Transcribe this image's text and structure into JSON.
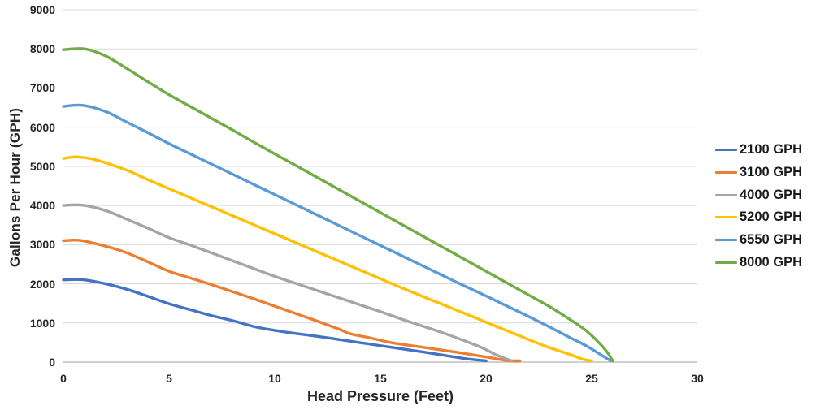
{
  "chart_data": {
    "type": "line",
    "title": "",
    "xlabel": "Head Pressure (Feet)",
    "ylabel": "Gallons Per Hour (GPH)",
    "xlim": [
      0,
      30
    ],
    "ylim": [
      0,
      9000
    ],
    "x_ticks": [
      0,
      5,
      10,
      15,
      20,
      25,
      30
    ],
    "y_ticks": [
      0,
      1000,
      2000,
      3000,
      4000,
      5000,
      6000,
      7000,
      8000,
      9000
    ],
    "grid": "horizontal-only",
    "gridline_color": "#d9d9d9",
    "axis_line_color": "#bfbfbf",
    "legend_position": "right",
    "series": [
      {
        "name": "2100 GPH",
        "color": "#4472C4",
        "points": [
          [
            0,
            2100
          ],
          [
            0.9,
            2105
          ],
          [
            2,
            2000
          ],
          [
            3,
            1860
          ],
          [
            4,
            1680
          ],
          [
            5,
            1490
          ],
          [
            6,
            1340
          ],
          [
            7,
            1190
          ],
          [
            8,
            1060
          ],
          [
            9,
            910
          ],
          [
            10,
            810
          ],
          [
            11,
            730
          ],
          [
            12,
            660
          ],
          [
            13,
            580
          ],
          [
            14,
            500
          ],
          [
            15,
            420
          ],
          [
            16,
            340
          ],
          [
            17,
            260
          ],
          [
            18,
            175
          ],
          [
            19,
            90
          ],
          [
            20,
            0
          ]
        ]
      },
      {
        "name": "3100 GPH",
        "color": "#ED7D31",
        "points": [
          [
            0,
            3100
          ],
          [
            0.8,
            3110
          ],
          [
            2,
            2960
          ],
          [
            3,
            2790
          ],
          [
            4,
            2560
          ],
          [
            5,
            2320
          ],
          [
            6,
            2150
          ],
          [
            7,
            1980
          ],
          [
            8,
            1800
          ],
          [
            9,
            1620
          ],
          [
            10,
            1430
          ],
          [
            11,
            1240
          ],
          [
            12,
            1050
          ],
          [
            13,
            850
          ],
          [
            13.6,
            720
          ],
          [
            14.5,
            620
          ],
          [
            15.5,
            500
          ],
          [
            17,
            380
          ],
          [
            18.5,
            260
          ],
          [
            20,
            130
          ],
          [
            21,
            40
          ],
          [
            21.6,
            0
          ]
        ]
      },
      {
        "name": "4000 GPH",
        "color": "#A5A5A5",
        "points": [
          [
            0,
            4000
          ],
          [
            0.9,
            4010
          ],
          [
            2,
            3870
          ],
          [
            3,
            3650
          ],
          [
            4,
            3420
          ],
          [
            5,
            3180
          ],
          [
            6,
            2990
          ],
          [
            7,
            2790
          ],
          [
            8,
            2590
          ],
          [
            9,
            2390
          ],
          [
            10,
            2190
          ],
          [
            11,
            2010
          ],
          [
            12,
            1830
          ],
          [
            13,
            1650
          ],
          [
            14,
            1470
          ],
          [
            15,
            1290
          ],
          [
            16,
            1100
          ],
          [
            17,
            920
          ],
          [
            18,
            740
          ],
          [
            19,
            540
          ],
          [
            19.8,
            370
          ],
          [
            20.5,
            180
          ],
          [
            21.2,
            0
          ]
        ]
      },
      {
        "name": "5200 GPH",
        "color": "#FFC000",
        "points": [
          [
            0,
            5200
          ],
          [
            0.6,
            5240
          ],
          [
            1.5,
            5170
          ],
          [
            3,
            4900
          ],
          [
            4,
            4660
          ],
          [
            5,
            4430
          ],
          [
            6,
            4200
          ],
          [
            7,
            3970
          ],
          [
            8,
            3740
          ],
          [
            9,
            3510
          ],
          [
            10,
            3280
          ],
          [
            11,
            3050
          ],
          [
            12,
            2820
          ],
          [
            13,
            2590
          ],
          [
            14,
            2360
          ],
          [
            15,
            2130
          ],
          [
            16,
            1900
          ],
          [
            17,
            1680
          ],
          [
            18,
            1460
          ],
          [
            19,
            1240
          ],
          [
            20,
            1020
          ],
          [
            21,
            800
          ],
          [
            22,
            580
          ],
          [
            23,
            370
          ],
          [
            24,
            190
          ],
          [
            24.6,
            70
          ],
          [
            25,
            0
          ]
        ]
      },
      {
        "name": "6550 GPH",
        "color": "#5B9BD5",
        "points": [
          [
            0,
            6530
          ],
          [
            0.9,
            6560
          ],
          [
            2,
            6400
          ],
          [
            3,
            6130
          ],
          [
            4,
            5860
          ],
          [
            5,
            5580
          ],
          [
            6,
            5320
          ],
          [
            7,
            5060
          ],
          [
            8,
            4800
          ],
          [
            9,
            4540
          ],
          [
            10,
            4280
          ],
          [
            11,
            4020
          ],
          [
            12,
            3760
          ],
          [
            13,
            3500
          ],
          [
            14,
            3240
          ],
          [
            15,
            2980
          ],
          [
            16,
            2720
          ],
          [
            17,
            2460
          ],
          [
            18,
            2200
          ],
          [
            19,
            1940
          ],
          [
            20,
            1690
          ],
          [
            21,
            1430
          ],
          [
            22,
            1170
          ],
          [
            23,
            900
          ],
          [
            24,
            620
          ],
          [
            24.8,
            400
          ],
          [
            25.4,
            200
          ],
          [
            25.9,
            0
          ]
        ]
      },
      {
        "name": "8000 GPH",
        "color": "#70AD47",
        "points": [
          [
            0,
            7980
          ],
          [
            1,
            8000
          ],
          [
            2,
            7820
          ],
          [
            3,
            7500
          ],
          [
            4,
            7160
          ],
          [
            5,
            6830
          ],
          [
            6,
            6530
          ],
          [
            7,
            6230
          ],
          [
            8,
            5930
          ],
          [
            9,
            5620
          ],
          [
            10,
            5320
          ],
          [
            11,
            5020
          ],
          [
            12,
            4720
          ],
          [
            13,
            4420
          ],
          [
            14,
            4120
          ],
          [
            15,
            3820
          ],
          [
            16,
            3520
          ],
          [
            17,
            3220
          ],
          [
            18,
            2920
          ],
          [
            19,
            2620
          ],
          [
            20,
            2320
          ],
          [
            21,
            2020
          ],
          [
            22,
            1720
          ],
          [
            23,
            1420
          ],
          [
            24,
            1080
          ],
          [
            24.7,
            820
          ],
          [
            25.3,
            520
          ],
          [
            25.7,
            280
          ],
          [
            26,
            0
          ]
        ]
      }
    ]
  }
}
